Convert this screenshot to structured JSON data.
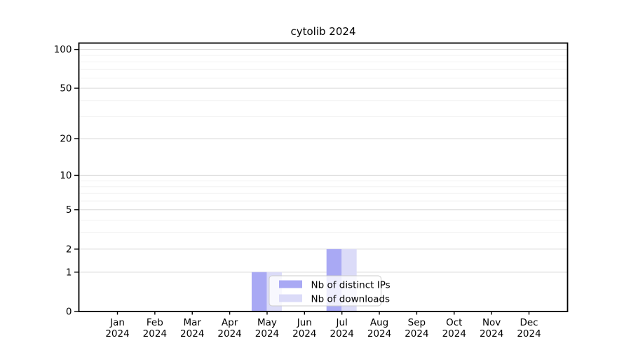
{
  "window": {
    "background": "#ffffff"
  },
  "chart_data": {
    "type": "bar",
    "title": "cytolib 2024",
    "year": "2024",
    "months": [
      "Jan",
      "Feb",
      "Mar",
      "Apr",
      "May",
      "Jun",
      "Jul",
      "Aug",
      "Sep",
      "Oct",
      "Nov",
      "Dec"
    ],
    "categories": [
      "Jan 2024",
      "Feb 2024",
      "Mar 2024",
      "Apr 2024",
      "May 2024",
      "Jun 2024",
      "Jul 2024",
      "Aug 2024",
      "Sep 2024",
      "Oct 2024",
      "Nov 2024",
      "Dec 2024"
    ],
    "series": [
      {
        "name": "Nb of distinct IPs",
        "color": "#a9a9f4",
        "values": [
          0,
          0,
          0,
          0,
          1,
          0,
          2,
          0,
          0,
          0,
          0,
          0
        ]
      },
      {
        "name": "Nb of downloads",
        "color": "#dbdbf8",
        "values": [
          0,
          0,
          0,
          0,
          1,
          0,
          2,
          0,
          0,
          0,
          0,
          0
        ]
      }
    ],
    "yscale": "log1p",
    "ylim": [
      0,
      112
    ],
    "yticks": [
      0,
      1,
      2,
      5,
      10,
      20,
      50,
      100
    ],
    "yticks_minor": [
      3,
      4,
      6,
      7,
      8,
      9,
      30,
      40,
      60,
      70,
      80,
      90
    ],
    "grid": {
      "grid_on": true,
      "major_color": "#dcdcdc",
      "minor_color": "#f2f2f2"
    },
    "spine_color": "#000000",
    "text_color": "#000000",
    "legend": {
      "position": "lower center",
      "background": "rgba(255,255,255,0.8)",
      "border_color": "#cccccc",
      "entries": [
        "Nb of distinct IPs",
        "Nb of downloads"
      ]
    }
  }
}
